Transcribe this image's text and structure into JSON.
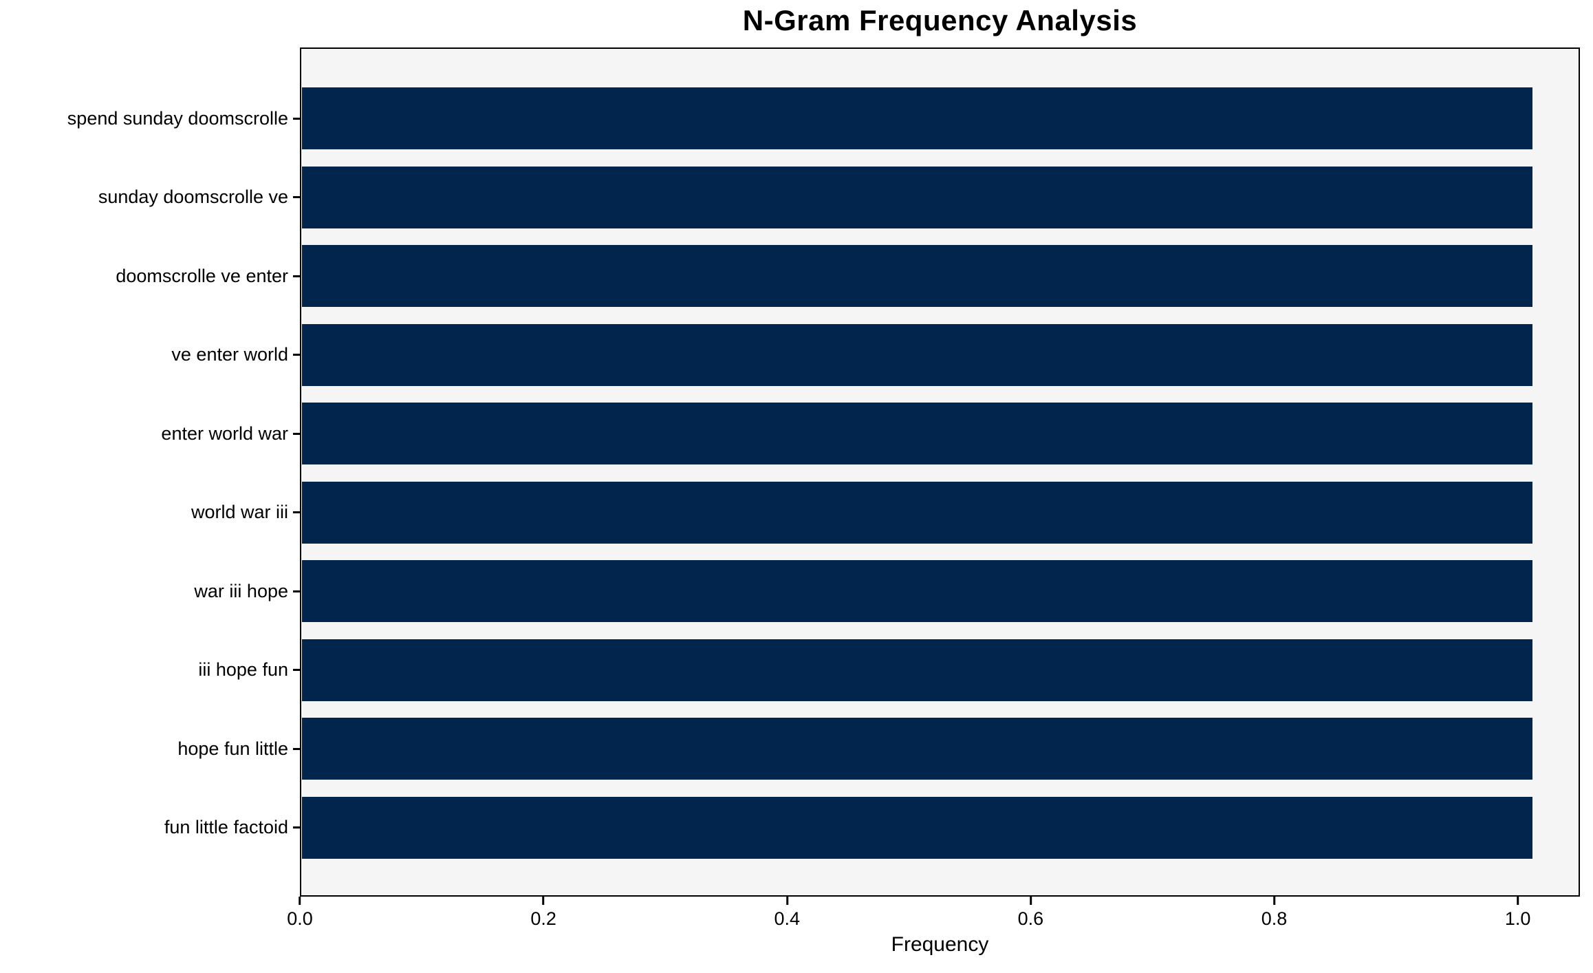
{
  "chart_data": {
    "type": "bar",
    "orientation": "horizontal",
    "title": "N-Gram Frequency Analysis",
    "xlabel": "Frequency",
    "ylabel": "",
    "categories": [
      "spend sunday doomscrolle",
      "sunday doomscrolle ve",
      "doomscrolle ve enter",
      "ve enter world",
      "enter world war",
      "world war iii",
      "war iii hope",
      "iii hope fun",
      "hope fun little",
      "fun little factoid"
    ],
    "values": [
      1.0,
      1.0,
      1.0,
      1.0,
      1.0,
      1.0,
      1.0,
      1.0,
      1.0,
      1.0
    ],
    "x_ticks": [
      "0.0",
      "0.2",
      "0.4",
      "0.6",
      "0.8",
      "1.0"
    ],
    "x_tick_values": [
      0.0,
      0.2,
      0.4,
      0.6,
      0.8,
      1.0
    ],
    "xlim": [
      0,
      1.051
    ],
    "grid": false,
    "legend_position": "none",
    "bar_color": "#02254e",
    "plot_background": "#f5f5f5",
    "figure_background": "#ffffff",
    "axis_color": "#000000",
    "text_color": "#000000"
  }
}
